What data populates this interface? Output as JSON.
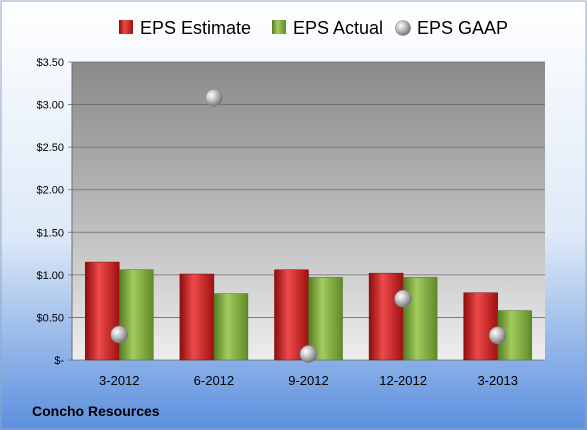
{
  "chart_data": {
    "type": "bar",
    "categories": [
      "3-2012",
      "6-2012",
      "9-2012",
      "12-2012",
      "3-2013"
    ],
    "series": [
      {
        "name": "EPS Estimate",
        "type": "bar",
        "color": "#c81e1e",
        "values": [
          1.15,
          1.01,
          1.06,
          1.02,
          0.79
        ]
      },
      {
        "name": "EPS Actual",
        "type": "bar",
        "color": "#7aa43c",
        "values": [
          1.06,
          0.78,
          0.97,
          0.97,
          0.58
        ]
      },
      {
        "name": "EPS GAAP",
        "type": "scatter",
        "color": "#a9a9a9",
        "values": [
          0.3,
          3.08,
          0.07,
          0.72,
          0.29
        ]
      }
    ],
    "yticks": [
      "$3.50",
      "$3.00",
      "$2.50",
      "$2.00",
      "$1.50",
      "$1.00",
      "$0.50",
      "$-"
    ],
    "ylim": [
      0,
      3.5
    ],
    "grid": true,
    "legend_position": "top"
  },
  "company": "Concho Resources"
}
